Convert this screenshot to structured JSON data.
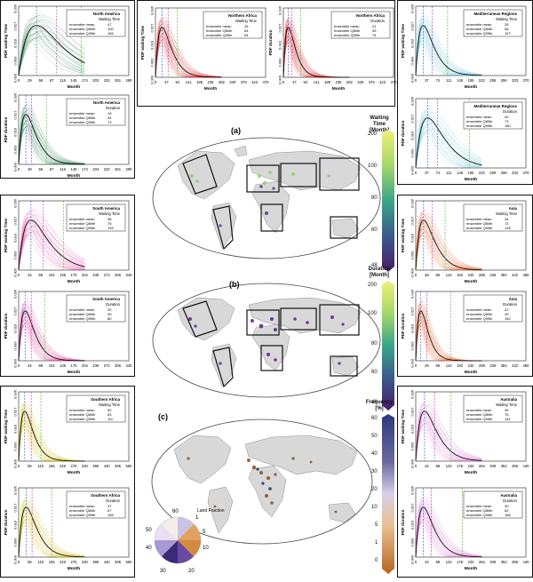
{
  "panels": [
    {
      "region": "North America",
      "type": "Waiting Time",
      "ylabel": "PDF waiting Time",
      "mean": "47",
      "q80": "100",
      "q99": "165",
      "xticks": [
        "0",
        "29",
        "58",
        "87",
        "116",
        "145",
        "174",
        "203",
        "232",
        "261",
        "290"
      ]
    },
    {
      "region": "North America",
      "type": "Duration",
      "ylabel": "PDF duration",
      "mean": "19",
      "q80": "34",
      "q99": "73",
      "xticks": [
        "0",
        "29",
        "58",
        "87",
        "116",
        "145",
        "174",
        "203",
        "232",
        "261",
        "290"
      ]
    },
    {
      "region": "Northern Africa",
      "type": "Waiting Time",
      "ylabel": "PDF waiting Time",
      "mean": "28",
      "q80": "54",
      "q99": "94",
      "xticks": [
        "0",
        "47",
        "94",
        "141",
        "188",
        "235",
        "282",
        "329",
        "376",
        "423",
        "470"
      ]
    },
    {
      "region": "Northern Africa",
      "type": "Duration",
      "ylabel": "PDF duration",
      "mean": "21",
      "q80": "35",
      "q99": "74",
      "xticks": [
        "0",
        "47",
        "94",
        "141",
        "188",
        "235",
        "282",
        "329",
        "376",
        "423",
        "470"
      ]
    },
    {
      "region": "Mediterranean Regions",
      "type": "Waiting Time",
      "ylabel": "PDF waiting Time",
      "mean": "25",
      "q80": "55",
      "q99": "107",
      "xticks": [
        "0",
        "37",
        "74",
        "111",
        "148",
        "185",
        "222",
        "259",
        "296",
        "333",
        "370"
      ]
    },
    {
      "region": "Mediterranean Regions",
      "type": "Duration",
      "ylabel": "PDF duration",
      "mean": "40",
      "q80": "73",
      "q99": "180",
      "xticks": [
        "0",
        "37",
        "74",
        "111",
        "148",
        "185",
        "222",
        "259",
        "296",
        "333",
        "370"
      ]
    },
    {
      "region": "South America",
      "type": "Waiting Time",
      "ylabel": "PDF waiting Time",
      "mean": "38",
      "q80": "76",
      "q99": "139",
      "xticks": [
        "0",
        "34",
        "68",
        "102",
        "136",
        "170",
        "204",
        "238",
        "272",
        "306",
        "340"
      ]
    },
    {
      "region": "South America",
      "type": "Duration",
      "ylabel": "PDF duration",
      "mean": "20",
      "q80": "39",
      "q99": "80",
      "xticks": [
        "0",
        "34",
        "68",
        "102",
        "136",
        "170",
        "204",
        "238",
        "272",
        "306",
        "340"
      ]
    },
    {
      "region": "Asia",
      "type": "Waiting Time",
      "ylabel": "PDF waiting Time",
      "mean": "34",
      "q80": "72",
      "q99": "128",
      "xticks": [
        "0",
        "48",
        "96",
        "144",
        "192",
        "240",
        "288",
        "336",
        "384",
        "432",
        "480"
      ]
    },
    {
      "region": "Asia",
      "type": "Duration",
      "ylabel": "PDF duration",
      "mean": "22",
      "q80": "49",
      "q99": "152",
      "xticks": [
        "0",
        "48",
        "96",
        "144",
        "192",
        "240",
        "288",
        "336",
        "384",
        "432",
        "480"
      ]
    },
    {
      "region": "Southern Africa",
      "type": "Waiting Time",
      "ylabel": "PDF waiting Time",
      "mean": "30",
      "q80": "63",
      "q99": "111",
      "xticks": [
        "0",
        "55",
        "110",
        "165",
        "220",
        "275",
        "330",
        "385",
        "440",
        "495",
        "550"
      ]
    },
    {
      "region": "Southern Africa",
      "type": "Duration",
      "ylabel": "PDF duration",
      "mean": "37",
      "q80": "67",
      "q99": "165",
      "xticks": [
        "0",
        "55",
        "110",
        "165",
        "220",
        "275",
        "330",
        "385",
        "440",
        "495",
        "550"
      ]
    },
    {
      "region": "Australia",
      "type": "Waiting Time",
      "ylabel": "PDF waiting Time",
      "mean": "35",
      "q80": "75",
      "q99": "141",
      "xticks": [
        "0",
        "44",
        "88",
        "132",
        "176",
        "220",
        "264",
        "308",
        "352",
        "396",
        "440"
      ]
    },
    {
      "region": "Australia",
      "type": "Duration",
      "ylabel": "PDF duration",
      "mean": "30",
      "q80": "62",
      "q99": "186",
      "xticks": [
        "0",
        "44",
        "88",
        "132",
        "176",
        "220",
        "264",
        "308",
        "352",
        "396",
        "440"
      ]
    }
  ],
  "common": {
    "xlabel": "Month",
    "stat_mean": "ensemble mean",
    "stat_q80": "ensemble Q80th",
    "stat_q99": "ensemble Q99th",
    "yticks": [
      "0.000",
      "0.009",
      "0.018",
      "0.027",
      "0.036"
    ]
  },
  "colors": {
    "North America": "#2e7d4f",
    "Northern Africa": "#e02020",
    "Mediterranean Regions": "#6cc7d6",
    "South America": "#e0409a",
    "Asia": "#e8602c",
    "Southern Africa": "#d8c21a",
    "Australia": "#e070d0"
  },
  "maps": {
    "a": {
      "label": "(a)",
      "cbar_title": "Waiting Time [Month]",
      "ticks": [
        "200",
        "100",
        "80",
        "60",
        "48"
      ]
    },
    "b": {
      "label": "(b)",
      "cbar_title": "Duration [Month]",
      "ticks": [
        "200",
        "100",
        "80",
        "60",
        "48"
      ]
    },
    "c": {
      "label": "(c)",
      "cbar_title": "Frequency [%]",
      "ticks": [
        "60",
        "50",
        "40",
        "30",
        "20",
        "10",
        "5",
        "1",
        "0"
      ]
    },
    "pie": {
      "title": "Land Fraction",
      "labels": [
        "60",
        "1",
        "5",
        "50",
        "10",
        "40",
        "30",
        "20"
      ]
    }
  }
}
